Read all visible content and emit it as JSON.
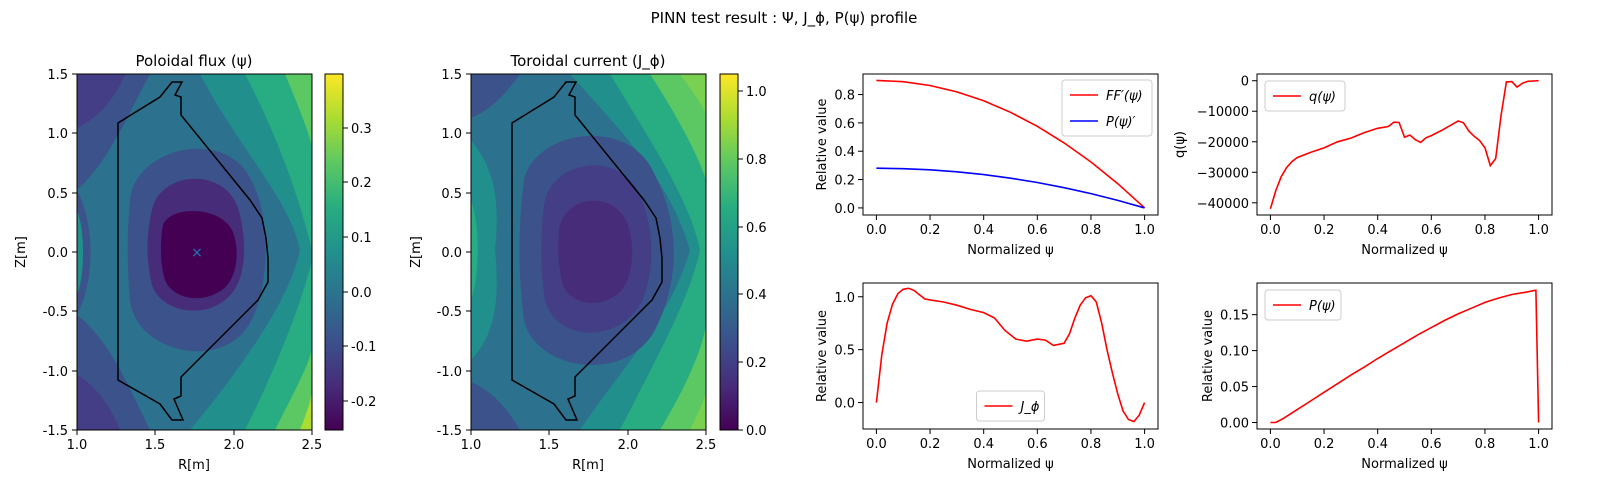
{
  "figure": {
    "suptitle": "PINN test result : Ψ, J_ϕ, P(ψ) profile"
  },
  "chart_data": [
    {
      "type": "heatmap",
      "id": "psi",
      "title": "Poloidal flux (ψ)",
      "xlabel": "R[m]",
      "ylabel": "Z[m]",
      "xlim": [
        1.0,
        2.5
      ],
      "ylim": [
        -1.5,
        1.5
      ],
      "xticks": [
        "1.0",
        "1.5",
        "2.0",
        "2.5"
      ],
      "yticks": [
        "-1.5",
        "-1.0",
        "-0.5",
        "0.0",
        "0.5",
        "1.0",
        "1.5"
      ],
      "colorbar": {
        "range": [
          -0.25,
          0.39
        ],
        "ticks": [
          "-0.2",
          "-0.1",
          "0.0",
          "0.1",
          "0.2",
          "0.3"
        ]
      },
      "colormap": "viridis",
      "marker": {
        "symbol": "×",
        "R": 1.78,
        "Z": 0.0,
        "color": "#1f77b4"
      },
      "boundary_color": "#000000"
    },
    {
      "type": "heatmap",
      "id": "jphi",
      "title": "Toroidal current (J_ϕ)",
      "xlabel": "R[m]",
      "ylabel": "Z[m]",
      "xlim": [
        1.0,
        2.5
      ],
      "ylim": [
        -1.5,
        1.5
      ],
      "xticks": [
        "1.0",
        "1.5",
        "2.0",
        "2.5"
      ],
      "yticks": [
        "-1.5",
        "-1.0",
        "-0.5",
        "0.0",
        "0.5",
        "1.0",
        "1.5"
      ],
      "colorbar": {
        "range": [
          0.0,
          1.05
        ],
        "ticks": [
          "0.0",
          "0.2",
          "0.4",
          "0.6",
          "0.8",
          "1.0"
        ]
      },
      "colormap": "viridis",
      "boundary_color": "#000000"
    },
    {
      "type": "line",
      "id": "ffprime",
      "xlabel": "Normalized ψ",
      "ylabel": "Relative value",
      "xlim": [
        -0.05,
        1.05
      ],
      "ylim": [
        -0.05,
        0.945
      ],
      "xticks": [
        "0.0",
        "0.2",
        "0.4",
        "0.6",
        "0.8",
        "1.0"
      ],
      "yticks": [
        "0.0",
        "0.2",
        "0.4",
        "0.6",
        "0.8"
      ],
      "legend_position": "upper right",
      "x": [
        0,
        0.1,
        0.2,
        0.3,
        0.4,
        0.5,
        0.6,
        0.7,
        0.8,
        0.9,
        1.0
      ],
      "series": [
        {
          "name": "FF′(ψ)",
          "color": "#ff0000",
          "values": [
            0.9,
            0.891,
            0.864,
            0.819,
            0.756,
            0.675,
            0.576,
            0.459,
            0.324,
            0.171,
            0.0
          ]
        },
        {
          "name": "P(ψ)′",
          "color": "#0000ff",
          "values": [
            0.28,
            0.277,
            0.269,
            0.255,
            0.235,
            0.21,
            0.179,
            0.143,
            0.101,
            0.053,
            0.0
          ]
        }
      ]
    },
    {
      "type": "line",
      "id": "q",
      "xlabel": "Normalized ψ",
      "ylabel": "q(ψ)",
      "xlim": [
        -0.05,
        1.05
      ],
      "ylim": [
        -44000,
        2200
      ],
      "xticks": [
        "0.0",
        "0.2",
        "0.4",
        "0.6",
        "0.8",
        "1.0"
      ],
      "yticks": [
        "−40000",
        "−30000",
        "−20000",
        "−10000",
        "0"
      ],
      "legend_position": "upper left",
      "x": [
        0.0,
        0.02,
        0.04,
        0.06,
        0.08,
        0.1,
        0.15,
        0.2,
        0.25,
        0.3,
        0.35,
        0.4,
        0.44,
        0.46,
        0.48,
        0.5,
        0.52,
        0.54,
        0.56,
        0.58,
        0.6,
        0.64,
        0.68,
        0.7,
        0.72,
        0.74,
        0.76,
        0.78,
        0.8,
        0.82,
        0.84,
        0.86,
        0.88,
        0.9,
        0.92,
        0.94,
        0.96,
        0.98,
        1.0
      ],
      "series": [
        {
          "name": "q(ψ)",
          "color": "#ff0000",
          "values": [
            -42000,
            -36000,
            -31500,
            -28500,
            -26500,
            -25200,
            -23500,
            -22000,
            -20000,
            -18800,
            -17000,
            -15600,
            -15000,
            -13600,
            -13700,
            -18500,
            -17800,
            -19300,
            -20200,
            -18700,
            -18000,
            -16200,
            -14200,
            -13200,
            -13800,
            -16500,
            -18200,
            -19600,
            -22000,
            -27800,
            -25500,
            -11500,
            -400,
            -300,
            -2100,
            -800,
            -200,
            -100,
            0
          ]
        }
      ]
    },
    {
      "type": "line",
      "id": "jphi_profile",
      "xlabel": "Normalized ψ",
      "ylabel": "Relative value",
      "xlim": [
        -0.05,
        1.05
      ],
      "ylim": [
        -0.25,
        1.13
      ],
      "xticks": [
        "0.0",
        "0.2",
        "0.4",
        "0.6",
        "0.8",
        "1.0"
      ],
      "yticks": [
        "0.0",
        "0.5",
        "1.0"
      ],
      "legend_position": "lower center",
      "x": [
        0.0,
        0.02,
        0.04,
        0.06,
        0.08,
        0.1,
        0.12,
        0.14,
        0.16,
        0.18,
        0.2,
        0.25,
        0.3,
        0.35,
        0.4,
        0.44,
        0.48,
        0.52,
        0.56,
        0.6,
        0.63,
        0.66,
        0.7,
        0.72,
        0.74,
        0.76,
        0.78,
        0.8,
        0.82,
        0.84,
        0.86,
        0.88,
        0.9,
        0.92,
        0.94,
        0.96,
        0.98,
        1.0
      ],
      "series": [
        {
          "name": "J_ϕ",
          "color": "#ff0000",
          "values": [
            0.0,
            0.45,
            0.75,
            0.93,
            1.03,
            1.07,
            1.08,
            1.06,
            1.02,
            0.98,
            0.97,
            0.95,
            0.92,
            0.88,
            0.85,
            0.8,
            0.68,
            0.6,
            0.58,
            0.6,
            0.59,
            0.54,
            0.56,
            0.65,
            0.8,
            0.92,
            0.99,
            1.01,
            0.95,
            0.75,
            0.5,
            0.28,
            0.08,
            -0.08,
            -0.16,
            -0.18,
            -0.12,
            0.0
          ]
        }
      ]
    },
    {
      "type": "line",
      "id": "pressure",
      "xlabel": "Normalized ψ",
      "ylabel": "Relative value",
      "xlim": [
        -0.05,
        1.05
      ],
      "ylim": [
        -0.009,
        0.194
      ],
      "xticks": [
        "0.0",
        "0.2",
        "0.4",
        "0.6",
        "0.8",
        "1.0"
      ],
      "yticks": [
        "0.00",
        "0.05",
        "0.10",
        "0.15"
      ],
      "legend_position": "upper left",
      "x": [
        0.0,
        0.02,
        0.05,
        0.1,
        0.15,
        0.2,
        0.25,
        0.3,
        0.35,
        0.4,
        0.45,
        0.5,
        0.55,
        0.6,
        0.65,
        0.7,
        0.75,
        0.8,
        0.85,
        0.9,
        0.95,
        0.99,
        1.0
      ],
      "series": [
        {
          "name": "P(ψ)",
          "color": "#ff0000",
          "values": [
            0.0,
            0.0,
            0.006,
            0.018,
            0.03,
            0.042,
            0.054,
            0.066,
            0.077,
            0.089,
            0.1,
            0.111,
            0.122,
            0.132,
            0.142,
            0.151,
            0.159,
            0.167,
            0.173,
            0.178,
            0.181,
            0.184,
            0.0
          ]
        }
      ]
    }
  ]
}
